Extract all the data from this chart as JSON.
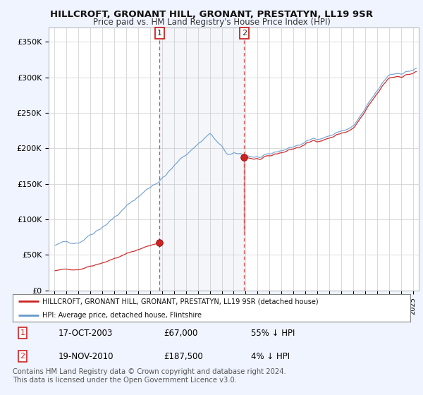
{
  "title": "HILLCROFT, GRONANT HILL, GRONANT, PRESTATYN, LL19 9SR",
  "subtitle": "Price paid vs. HM Land Registry's House Price Index (HPI)",
  "title_fontsize": 9.5,
  "subtitle_fontsize": 8.5,
  "ylabel_ticks": [
    "£0",
    "£50K",
    "£100K",
    "£150K",
    "£200K",
    "£250K",
    "£300K",
    "£350K"
  ],
  "ytick_values": [
    0,
    50000,
    100000,
    150000,
    200000,
    250000,
    300000,
    350000
  ],
  "ylim": [
    0,
    370000
  ],
  "xlim_start": 1994.5,
  "xlim_end": 2025.5,
  "background_color": "#f0f4ff",
  "plot_bg_color": "#ffffff",
  "hpi_color": "#6699cc",
  "price_color": "#cc2222",
  "sale1_year": 2003,
  "sale1_month": 10,
  "sale1_price": 67000,
  "sale2_year": 2010,
  "sale2_month": 11,
  "sale2_price": 187500,
  "legend_label1": "HILLCROFT, GRONANT HILL, GRONANT, PRESTATYN, LL19 9SR (detached house)",
  "legend_label2": "HPI: Average price, detached house, Flintshire",
  "table_row1": [
    "1",
    "17-OCT-2003",
    "£67,000",
    "55% ↓ HPI"
  ],
  "table_row2": [
    "2",
    "19-NOV-2010",
    "£187,500",
    "4% ↓ HPI"
  ],
  "footer": "Contains HM Land Registry data © Crown copyright and database right 2024.\nThis data is licensed under the Open Government Licence v3.0.",
  "footer_fontsize": 7.2
}
